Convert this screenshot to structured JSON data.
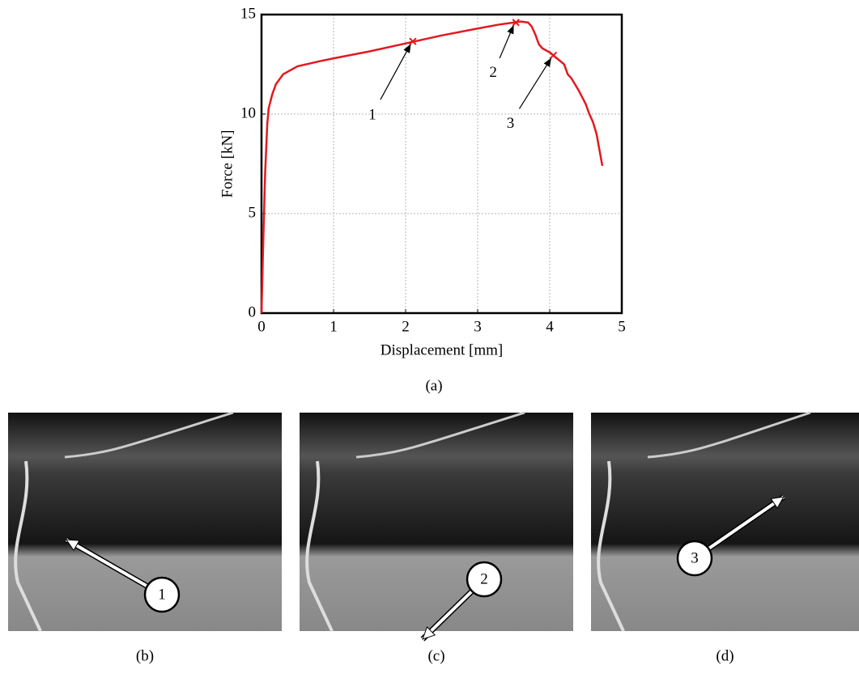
{
  "chart_data": {
    "type": "line",
    "xlabel": "Displacement [mm]",
    "ylabel": "Force [kN]",
    "caption": "(a)",
    "x": [
      0,
      0.02,
      0.05,
      0.08,
      0.1,
      0.15,
      0.2,
      0.3,
      0.5,
      0.8,
      1.0,
      1.5,
      2.0,
      2.5,
      3.0,
      3.3,
      3.5,
      3.6,
      3.7,
      3.75,
      3.8,
      3.85,
      3.9,
      4.0,
      4.1,
      4.2,
      4.25,
      4.3,
      4.4,
      4.5,
      4.55,
      4.6,
      4.65,
      4.7,
      4.73
    ],
    "values": [
      0,
      3,
      7,
      9.5,
      10.3,
      11.0,
      11.5,
      12.0,
      12.4,
      12.65,
      12.8,
      13.15,
      13.55,
      13.95,
      14.3,
      14.5,
      14.6,
      14.65,
      14.6,
      14.4,
      14.0,
      13.5,
      13.3,
      13.1,
      12.8,
      12.5,
      12.0,
      11.8,
      11.2,
      10.5,
      10.0,
      9.6,
      9.0,
      8.0,
      7.4
    ],
    "color": "#e3191f",
    "markers": {
      "x": [
        2.1,
        3.53,
        4.05
      ],
      "values": [
        13.65,
        14.6,
        12.95
      ],
      "labels": [
        "1",
        "2",
        "3"
      ]
    },
    "xlim": [
      0,
      5
    ],
    "ylim": [
      0,
      15
    ],
    "xticks": [
      0,
      1,
      2,
      3,
      4,
      5
    ],
    "yticks": [
      0,
      5,
      10,
      15
    ],
    "grid": true
  },
  "panels": [
    {
      "caption": "(b)",
      "label": "1"
    },
    {
      "caption": "(c)",
      "label": "2"
    },
    {
      "caption": "(d)",
      "label": "3"
    }
  ]
}
